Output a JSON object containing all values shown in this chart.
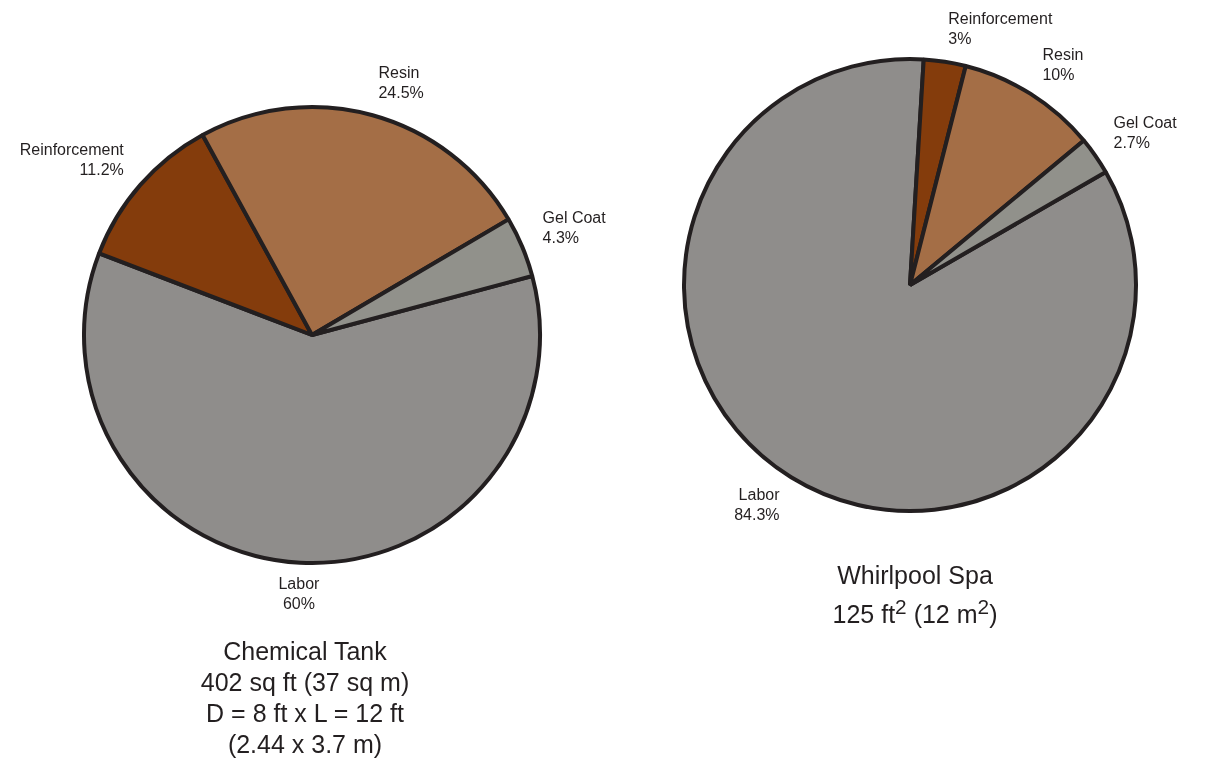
{
  "chart_data": [
    {
      "type": "pie",
      "title": "Chemical Tank",
      "subtitle": "402 sq ft (37 sq m)",
      "annotations": [
        "D = 8 ft x L = 12 ft",
        "(2.44 x 3.7 m)"
      ],
      "categories": [
        "Labor",
        "Reinforcement",
        "Resin",
        "Gel Coat"
      ],
      "values": [
        60,
        11.2,
        24.5,
        4.3
      ],
      "value_labels": [
        "60%",
        "11.2%",
        "24.5%",
        "4.3%"
      ],
      "colors": [
        "#8f8d8b",
        "#843c0c",
        "#a46e46",
        "#91918b"
      ]
    },
    {
      "type": "pie",
      "title": "Whirlpool Spa",
      "subtitle": "125 ft$^{2}$ (12 m$^{2}$)",
      "categories": [
        "Labor",
        "Reinforcement",
        "Resin",
        "Gel Coat"
      ],
      "values": [
        84.3,
        3,
        10,
        2.7
      ],
      "value_labels": [
        "84.3%",
        "3%",
        "10%",
        "2.7%"
      ],
      "colors": [
        "#8f8d8b",
        "#843c0c",
        "#a46e46",
        "#91918b"
      ]
    }
  ]
}
